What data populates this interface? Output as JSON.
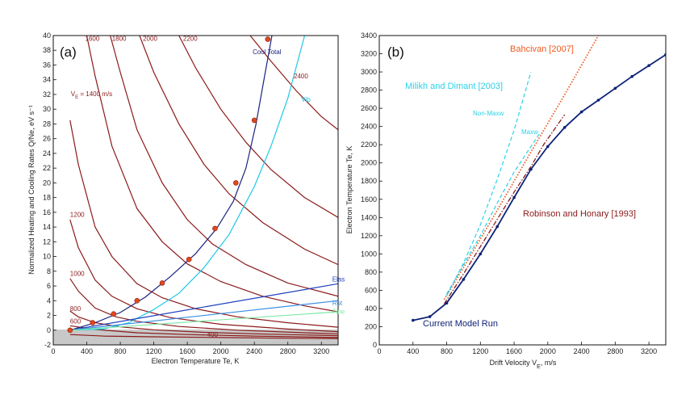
{
  "colors": {
    "heating": "#8b1a1a",
    "cool_total": "#1a237e",
    "vib": "#1ec8e6",
    "elastic": "#1f3fbf",
    "rot": "#3a8ee6",
    "fine": "#7fe8a8",
    "marker": "#e04a1a",
    "model_run": "#0d2277",
    "robinson": "#8b1a1a",
    "bahcivan": "#f05a1e",
    "milikh": "#2ad2e8",
    "shade": "#c8c8c8"
  },
  "chart_data": [
    {
      "id": "a",
      "type": "line",
      "panel_label": "(a)",
      "xlabel": "Electron Temperature Te, K",
      "ylabel": "Normalized Heating and Cooling Rates Q/Ne, eV s⁻¹",
      "xlim": [
        0,
        3400
      ],
      "ylim": [
        -2,
        40
      ],
      "xticks": [
        0,
        400,
        800,
        1200,
        1600,
        2000,
        2400,
        2800,
        3200
      ],
      "yticks": [
        -2,
        0,
        2,
        4,
        6,
        8,
        10,
        12,
        14,
        16,
        18,
        20,
        22,
        24,
        26,
        28,
        30,
        32,
        34,
        36,
        38,
        40
      ],
      "heating_series": [
        {
          "name": "400",
          "label": "400",
          "values": [
            [
              200,
              -0.6
            ],
            [
              600,
              -0.8
            ],
            [
              1200,
              -0.9
            ],
            [
              2000,
              -1.0
            ],
            [
              2800,
              -1.1
            ],
            [
              3400,
              -1.15
            ]
          ]
        },
        {
          "name": "600",
          "label": "600",
          "values": [
            [
              200,
              0.6
            ],
            [
              500,
              0.1
            ],
            [
              1000,
              -0.35
            ],
            [
              1600,
              -0.6
            ],
            [
              2400,
              -0.8
            ],
            [
              3400,
              -1.0
            ]
          ]
        },
        {
          "name": "800",
          "label": "800",
          "values": [
            [
              200,
              2.6
            ],
            [
              300,
              1.8
            ],
            [
              500,
              1.0
            ],
            [
              800,
              0.45
            ],
            [
              1200,
              0.05
            ],
            [
              1800,
              -0.3
            ],
            [
              2600,
              -0.55
            ],
            [
              3400,
              -0.75
            ]
          ]
        },
        {
          "name": "1000",
          "label": "1000",
          "values": [
            [
              200,
              7.0
            ],
            [
              300,
              5.3
            ],
            [
              500,
              3.0
            ],
            [
              750,
              1.8
            ],
            [
              1000,
              1.2
            ],
            [
              1500,
              0.5
            ],
            [
              2200,
              0.0
            ],
            [
              3000,
              -0.35
            ],
            [
              3400,
              -0.5
            ]
          ]
        },
        {
          "name": "1200",
          "label": "1200",
          "values": [
            [
              200,
              15.0
            ],
            [
              300,
              11.2
            ],
            [
              500,
              6.8
            ],
            [
              700,
              4.6
            ],
            [
              1000,
              2.9
            ],
            [
              1400,
              1.7
            ],
            [
              2000,
              0.8
            ],
            [
              2800,
              0.15
            ],
            [
              3400,
              -0.2
            ]
          ]
        },
        {
          "name": "V_E = 1400 m/s",
          "label": "V_E = 1400 m/s",
          "values": [
            [
              200,
              28.5
            ],
            [
              300,
              22.5
            ],
            [
              500,
              14.0
            ],
            [
              700,
              10.0
            ],
            [
              1000,
              6.3
            ],
            [
              1300,
              4.4
            ],
            [
              1700,
              2.9
            ],
            [
              2200,
              1.8
            ],
            [
              2800,
              1.0
            ],
            [
              3400,
              0.4
            ]
          ]
        },
        {
          "name": "1600",
          "label": "1600",
          "values": [
            [
              400,
              40
            ],
            [
              500,
              34.5
            ],
            [
              700,
              25.0
            ],
            [
              1000,
              16.5
            ],
            [
              1300,
              12.0
            ],
            [
              1600,
              9.0
            ],
            [
              2000,
              6.6
            ],
            [
              2500,
              4.6
            ],
            [
              3000,
              3.3
            ],
            [
              3400,
              2.5
            ]
          ]
        },
        {
          "name": "1800",
          "label": "1800",
          "values": [
            [
              680,
              40
            ],
            [
              800,
              35.0
            ],
            [
              1000,
              27.2
            ],
            [
              1300,
              20.0
            ],
            [
              1600,
              15.0
            ],
            [
              1900,
              11.7
            ],
            [
              2300,
              8.9
            ],
            [
              2800,
              6.4
            ],
            [
              3400,
              4.6
            ]
          ]
        },
        {
          "name": "2000",
          "label": "2000",
          "values": [
            [
              1030,
              40
            ],
            [
              1200,
              35.0
            ],
            [
              1500,
              28.0
            ],
            [
              1800,
              22.5
            ],
            [
              2100,
              18.5
            ],
            [
              2500,
              14.6
            ],
            [
              3000,
              11.0
            ],
            [
              3400,
              8.9
            ]
          ]
        },
        {
          "name": "2200",
          "label": "2200",
          "values": [
            [
              1500,
              40
            ],
            [
              1700,
              35.6
            ],
            [
              2000,
              30.0
            ],
            [
              2300,
              25.5
            ],
            [
              2600,
              21.8
            ],
            [
              3000,
              18.0
            ],
            [
              3400,
              15.3
            ]
          ]
        },
        {
          "name": "2400",
          "label": "2400",
          "values": [
            [
              2350,
              40
            ],
            [
              2600,
              36.5
            ],
            [
              2900,
              32.5
            ],
            [
              3200,
              29.0
            ],
            [
              3400,
              27.2
            ]
          ]
        }
      ],
      "cooling_series": [
        {
          "name": "Cool Total",
          "label": "Cool Total",
          "values": [
            [
              200,
              0
            ],
            [
              500,
              1.0
            ],
            [
              800,
              2.4
            ],
            [
              1100,
              4.5
            ],
            [
              1400,
              7.3
            ],
            [
              1700,
              10.4
            ],
            [
              1950,
              13.8
            ],
            [
              2150,
              17.5
            ],
            [
              2300,
              22.0
            ],
            [
              2420,
              28.0
            ],
            [
              2530,
              35.0
            ],
            [
              2610,
              40
            ]
          ]
        },
        {
          "name": "Vib",
          "label": "Vib",
          "values": [
            [
              200,
              0
            ],
            [
              600,
              0.15
            ],
            [
              900,
              1.0
            ],
            [
              1200,
              2.8
            ],
            [
              1500,
              5.0
            ],
            [
              1800,
              8.5
            ],
            [
              2100,
              13.0
            ],
            [
              2400,
              19.5
            ],
            [
              2600,
              25.0
            ],
            [
              2800,
              31.5
            ],
            [
              3000,
              40
            ]
          ]
        },
        {
          "name": "Elas",
          "label": "Elas",
          "values": [
            [
              200,
              0
            ],
            [
              3400,
              6.3
            ]
          ]
        },
        {
          "name": "Rot",
          "label": "Rot",
          "values": [
            [
              200,
              0
            ],
            [
              3400,
              4.0
            ]
          ]
        },
        {
          "name": "Fine",
          "label": "Fine",
          "values": [
            [
              200,
              0
            ],
            [
              3400,
              2.5
            ]
          ]
        }
      ],
      "equilibrium_points": [
        [
          200,
          0
        ],
        [
          470,
          1.0
        ],
        [
          720,
          2.2
        ],
        [
          1000,
          4.0
        ],
        [
          1300,
          6.4
        ],
        [
          1620,
          9.6
        ],
        [
          1930,
          13.8
        ],
        [
          2180,
          20.0
        ],
        [
          2400,
          28.5
        ],
        [
          2560,
          39.5
        ]
      ]
    },
    {
      "id": "b",
      "type": "line",
      "panel_label": "(b)",
      "xlabel": "Drift Velocity V_E, m/s",
      "ylabel": "Electron Temperature Te, K",
      "xlim": [
        0,
        3400
      ],
      "ylim": [
        0,
        3400
      ],
      "xticks": [
        0,
        400,
        800,
        1200,
        1600,
        2000,
        2400,
        2800,
        3200
      ],
      "yticks": [
        0,
        200,
        400,
        600,
        800,
        1000,
        1200,
        1400,
        1600,
        1800,
        2000,
        2200,
        2400,
        2600,
        2800,
        3000,
        3200,
        3400
      ],
      "series": [
        {
          "name": "Current Model Run",
          "label": "Current Model Run",
          "style": "solid",
          "values": [
            [
              400,
              270
            ],
            [
              600,
              310
            ],
            [
              800,
              460
            ],
            [
              1000,
              720
            ],
            [
              1200,
              1000
            ],
            [
              1400,
              1300
            ],
            [
              1600,
              1620
            ],
            [
              1800,
              1930
            ],
            [
              2000,
              2180
            ],
            [
              2200,
              2390
            ],
            [
              2400,
              2560
            ],
            [
              2600,
              2690
            ],
            [
              2800,
              2820
            ],
            [
              3000,
              2950
            ],
            [
              3200,
              3070
            ],
            [
              3400,
              3190
            ]
          ]
        },
        {
          "name": "Robinson and Honary [1993]",
          "label": "Robinson and Honary [1993]",
          "style": "dashdot",
          "values": [
            [
              770,
              450
            ],
            [
              1000,
              780
            ],
            [
              1200,
              1080
            ],
            [
              1400,
              1380
            ],
            [
              1600,
              1680
            ],
            [
              1800,
              1960
            ],
            [
              1950,
              2200
            ],
            [
              2200,
              2530
            ]
          ]
        },
        {
          "name": "Bahcivan [2007]",
          "label": "Bahcivan [2007]",
          "style": "dotted",
          "values": [
            [
              770,
              500
            ],
            [
              1000,
              850
            ],
            [
              1400,
              1480
            ],
            [
              1800,
              2120
            ],
            [
              2200,
              2750
            ],
            [
              2600,
              3400
            ]
          ]
        },
        {
          "name": "Milikh and Dimant [2003] Non-Maxw",
          "label": "Non-Maxw",
          "style": "dashed",
          "values": [
            [
              800,
              540
            ],
            [
              1000,
              900
            ],
            [
              1200,
              1320
            ],
            [
              1400,
              1820
            ],
            [
              1600,
              2360
            ],
            [
              1800,
              3000
            ]
          ]
        },
        {
          "name": "Milikh and Dimant [2003] Maxw",
          "label": "Maxw",
          "style": "dashed",
          "values": [
            [
              800,
              560
            ],
            [
              1000,
              880
            ],
            [
              1200,
              1200
            ],
            [
              1400,
              1560
            ],
            [
              1600,
              1900
            ],
            [
              1800,
              2180
            ],
            [
              1900,
              2320
            ]
          ]
        }
      ],
      "annotations": {
        "milikh": "Milikh and Dimant [2003]",
        "bahcivan": "Bahcivan [2007]",
        "robinson": "Robinson and Honary [1993]",
        "model": "Current Model Run",
        "nonmaxw": "Non-Maxw",
        "maxw": "Maxw"
      }
    }
  ]
}
